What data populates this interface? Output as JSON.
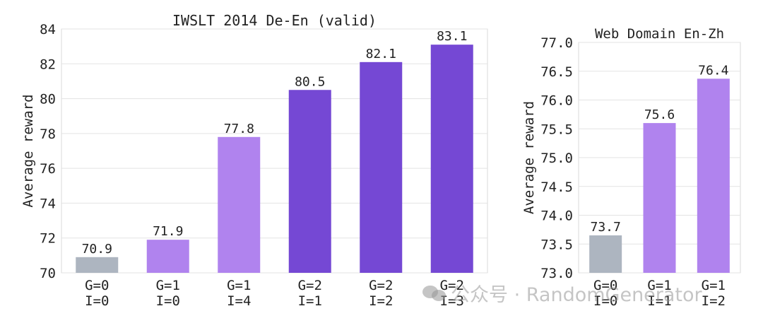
{
  "chart_data": [
    {
      "type": "bar",
      "title": "IWSLT 2014 De-En (valid)",
      "ylabel": "Average reward",
      "xlabel": "",
      "ylim": [
        70,
        84
      ],
      "yticks": [
        "70",
        "72",
        "74",
        "76",
        "78",
        "80",
        "82",
        "84"
      ],
      "ytick_values": [
        70,
        72,
        74,
        76,
        78,
        80,
        82,
        84
      ],
      "grid": true,
      "categories": [
        [
          "G=0",
          "I=0"
        ],
        [
          "G=1",
          "I=0"
        ],
        [
          "G=1",
          "I=4"
        ],
        [
          "G=2",
          "I=1"
        ],
        [
          "G=2",
          "I=2"
        ],
        [
          "G=2",
          "I=3"
        ]
      ],
      "values": [
        70.9,
        71.9,
        77.8,
        80.5,
        82.1,
        83.1
      ],
      "value_labels": [
        "70.9",
        "71.9",
        "77.8",
        "80.5",
        "82.1",
        "83.1"
      ],
      "colors": [
        "#adb5c0",
        "#b083ee",
        "#b083ee",
        "#7548d4",
        "#7548d4",
        "#7548d4"
      ]
    },
    {
      "type": "bar",
      "title": "Web Domain En-Zh",
      "ylabel": "Average reward",
      "xlabel": "",
      "ylim": [
        73.0,
        77.0
      ],
      "yticks": [
        "73.0",
        "73.5",
        "74.0",
        "74.5",
        "75.0",
        "75.5",
        "76.0",
        "76.5",
        "77.0"
      ],
      "ytick_values": [
        73.0,
        73.5,
        74.0,
        74.5,
        75.0,
        75.5,
        76.0,
        76.5,
        77.0
      ],
      "grid": true,
      "categories": [
        [
          "G=0",
          "I=0"
        ],
        [
          "G=1",
          "I=1"
        ],
        [
          "G=1",
          "I=2"
        ]
      ],
      "values": [
        73.65,
        75.6,
        76.37
      ],
      "value_labels": [
        "73.7",
        "75.6",
        "76.4"
      ],
      "colors": [
        "#adb5c0",
        "#b083ee",
        "#b083ee"
      ]
    }
  ],
  "watermark": {
    "text": "公众号 · RandomGenerator",
    "icon": "wechat-icon"
  }
}
